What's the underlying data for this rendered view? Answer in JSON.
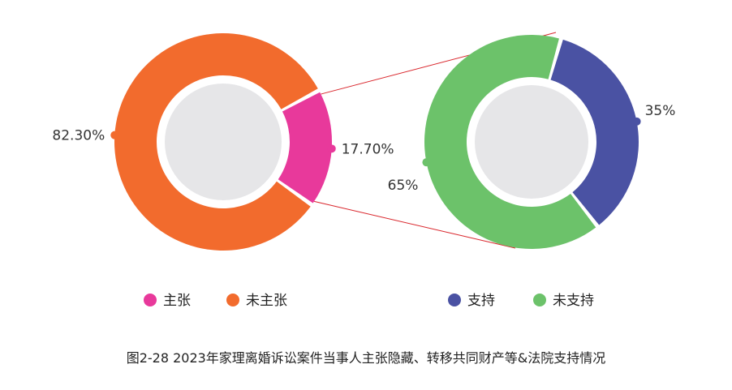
{
  "chart_data": [
    {
      "type": "pie",
      "title": "",
      "categories": [
        "主张",
        "未主张"
      ],
      "values": [
        17.7,
        82.3
      ],
      "labels": [
        "17.70%",
        "82.30%"
      ],
      "colors": [
        "#e8399b",
        "#f26b2d"
      ],
      "legend": "bottom"
    },
    {
      "type": "pie",
      "title": "",
      "categories": [
        "支持",
        "未支持"
      ],
      "values": [
        35,
        65
      ],
      "labels": [
        "35%",
        "65%"
      ],
      "colors": [
        "#4a52a3",
        "#6cc26a"
      ],
      "legend": "bottom"
    }
  ],
  "caption": "图2-28  2023年家理离婚诉讼案件当事人主张隐藏、转移共同财产等&法院支持情况",
  "inner_circle_color": "#e6e6e8",
  "connector_color": "#d9262c"
}
